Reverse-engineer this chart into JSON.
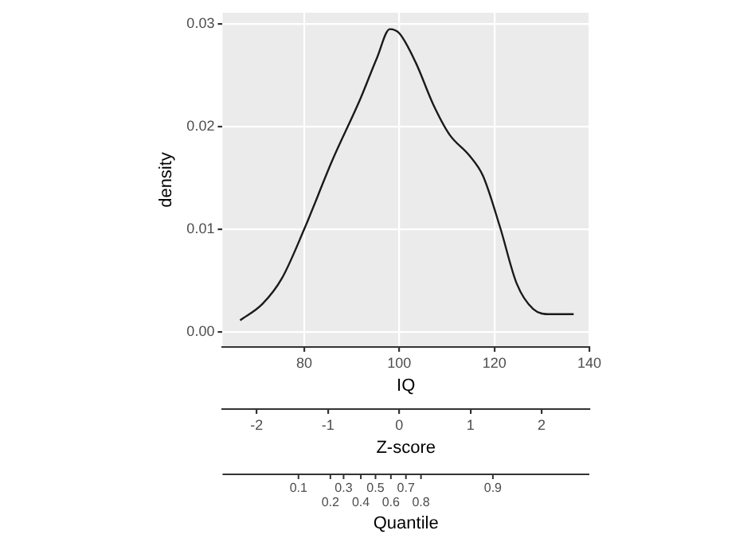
{
  "chart_data": {
    "type": "line",
    "xlabel": "IQ",
    "ylabel": "density",
    "x2label": "Z-score",
    "x": [
      66.5,
      71.2,
      75.3,
      80,
      85.9,
      91.8,
      95.3,
      98,
      100,
      103.5,
      107.1,
      110.6,
      114.7,
      117.6,
      121.2,
      124.7,
      128.2,
      131.8,
      136.7
    ],
    "series": [
      {
        "color": "#1a1a1a",
        "values": [
          0.0011,
          0.0027,
          0.0052,
          0.01,
          0.0167,
          0.0227,
          0.0267,
          0.0295,
          0.0291,
          0.0262,
          0.0222,
          0.0192,
          0.0172,
          0.0152,
          0.0102,
          0.0047,
          0.0022,
          0.0017,
          0.0017
        ]
      }
    ],
    "xlim": [
      62.8,
      140
    ],
    "xticks": [
      80,
      100,
      120,
      140
    ],
    "x2lim": [
      -2.48,
      2.67
    ],
    "x2ticks": [
      -2,
      -1,
      0,
      1,
      2
    ],
    "ylim": [
      -0.0015,
      0.0311
    ],
    "yticks": [
      {
        "value": 0,
        "label": "0.00"
      },
      {
        "value": 0.01,
        "label": "0.01"
      },
      {
        "value": 0.02,
        "label": "0.02"
      },
      {
        "value": 0.03,
        "label": "0.03"
      }
    ],
    "annotations": [
      "0.1",
      "0.2",
      "0.3",
      "0.4",
      "0.5",
      "0.6",
      "0.7",
      "0.8",
      "0.9",
      "Quantile"
    ],
    "grid": true
  }
}
